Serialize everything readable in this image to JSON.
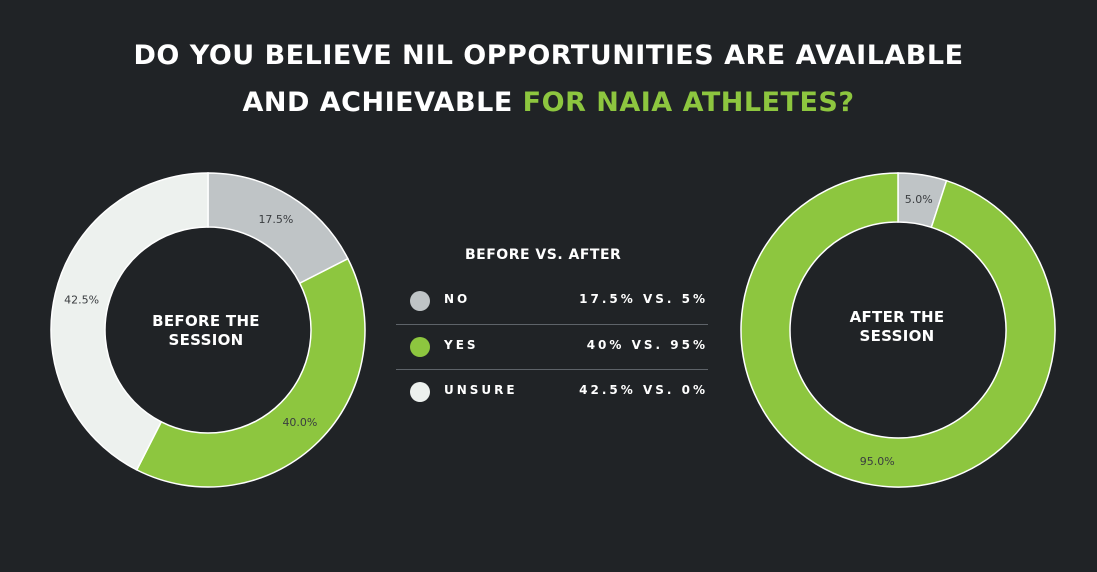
{
  "title": {
    "line1": "DO YOU BELIEVE NIL OPPORTUNITIES ARE  AVAILABLE",
    "line2_white": "AND ACHIEVABLE ",
    "line2_green": "FOR NAIA ATHLETES?"
  },
  "colors": {
    "background": "#202326",
    "no": "#bfc4c6",
    "yes": "#8dc63f",
    "unsure": "#edf1ee",
    "accent": "#8dc63f"
  },
  "legend": {
    "title": "BEFORE VS. AFTER",
    "rows": [
      {
        "label": "NO",
        "value": "17.5% VS. 5%"
      },
      {
        "label": "YES",
        "value": "40% VS. 95%"
      },
      {
        "label": "UNSURE",
        "value": "42.5% VS. 0%"
      }
    ]
  },
  "chart_data": [
    {
      "type": "pie",
      "donut": true,
      "center_label": "BEFORE THE\nSESSION",
      "slices": [
        {
          "name": "NO",
          "value": 17.5,
          "label": "17.5%"
        },
        {
          "name": "YES",
          "value": 40.0,
          "label": "40.0%"
        },
        {
          "name": "UNSURE",
          "value": 42.5,
          "label": "42.5%"
        }
      ]
    },
    {
      "type": "pie",
      "donut": true,
      "center_label": "AFTER THE\nSESSION",
      "slices": [
        {
          "name": "NO",
          "value": 5.0,
          "label": "5.0%"
        },
        {
          "name": "YES",
          "value": 95.0,
          "label": "95.0%"
        }
      ]
    }
  ]
}
